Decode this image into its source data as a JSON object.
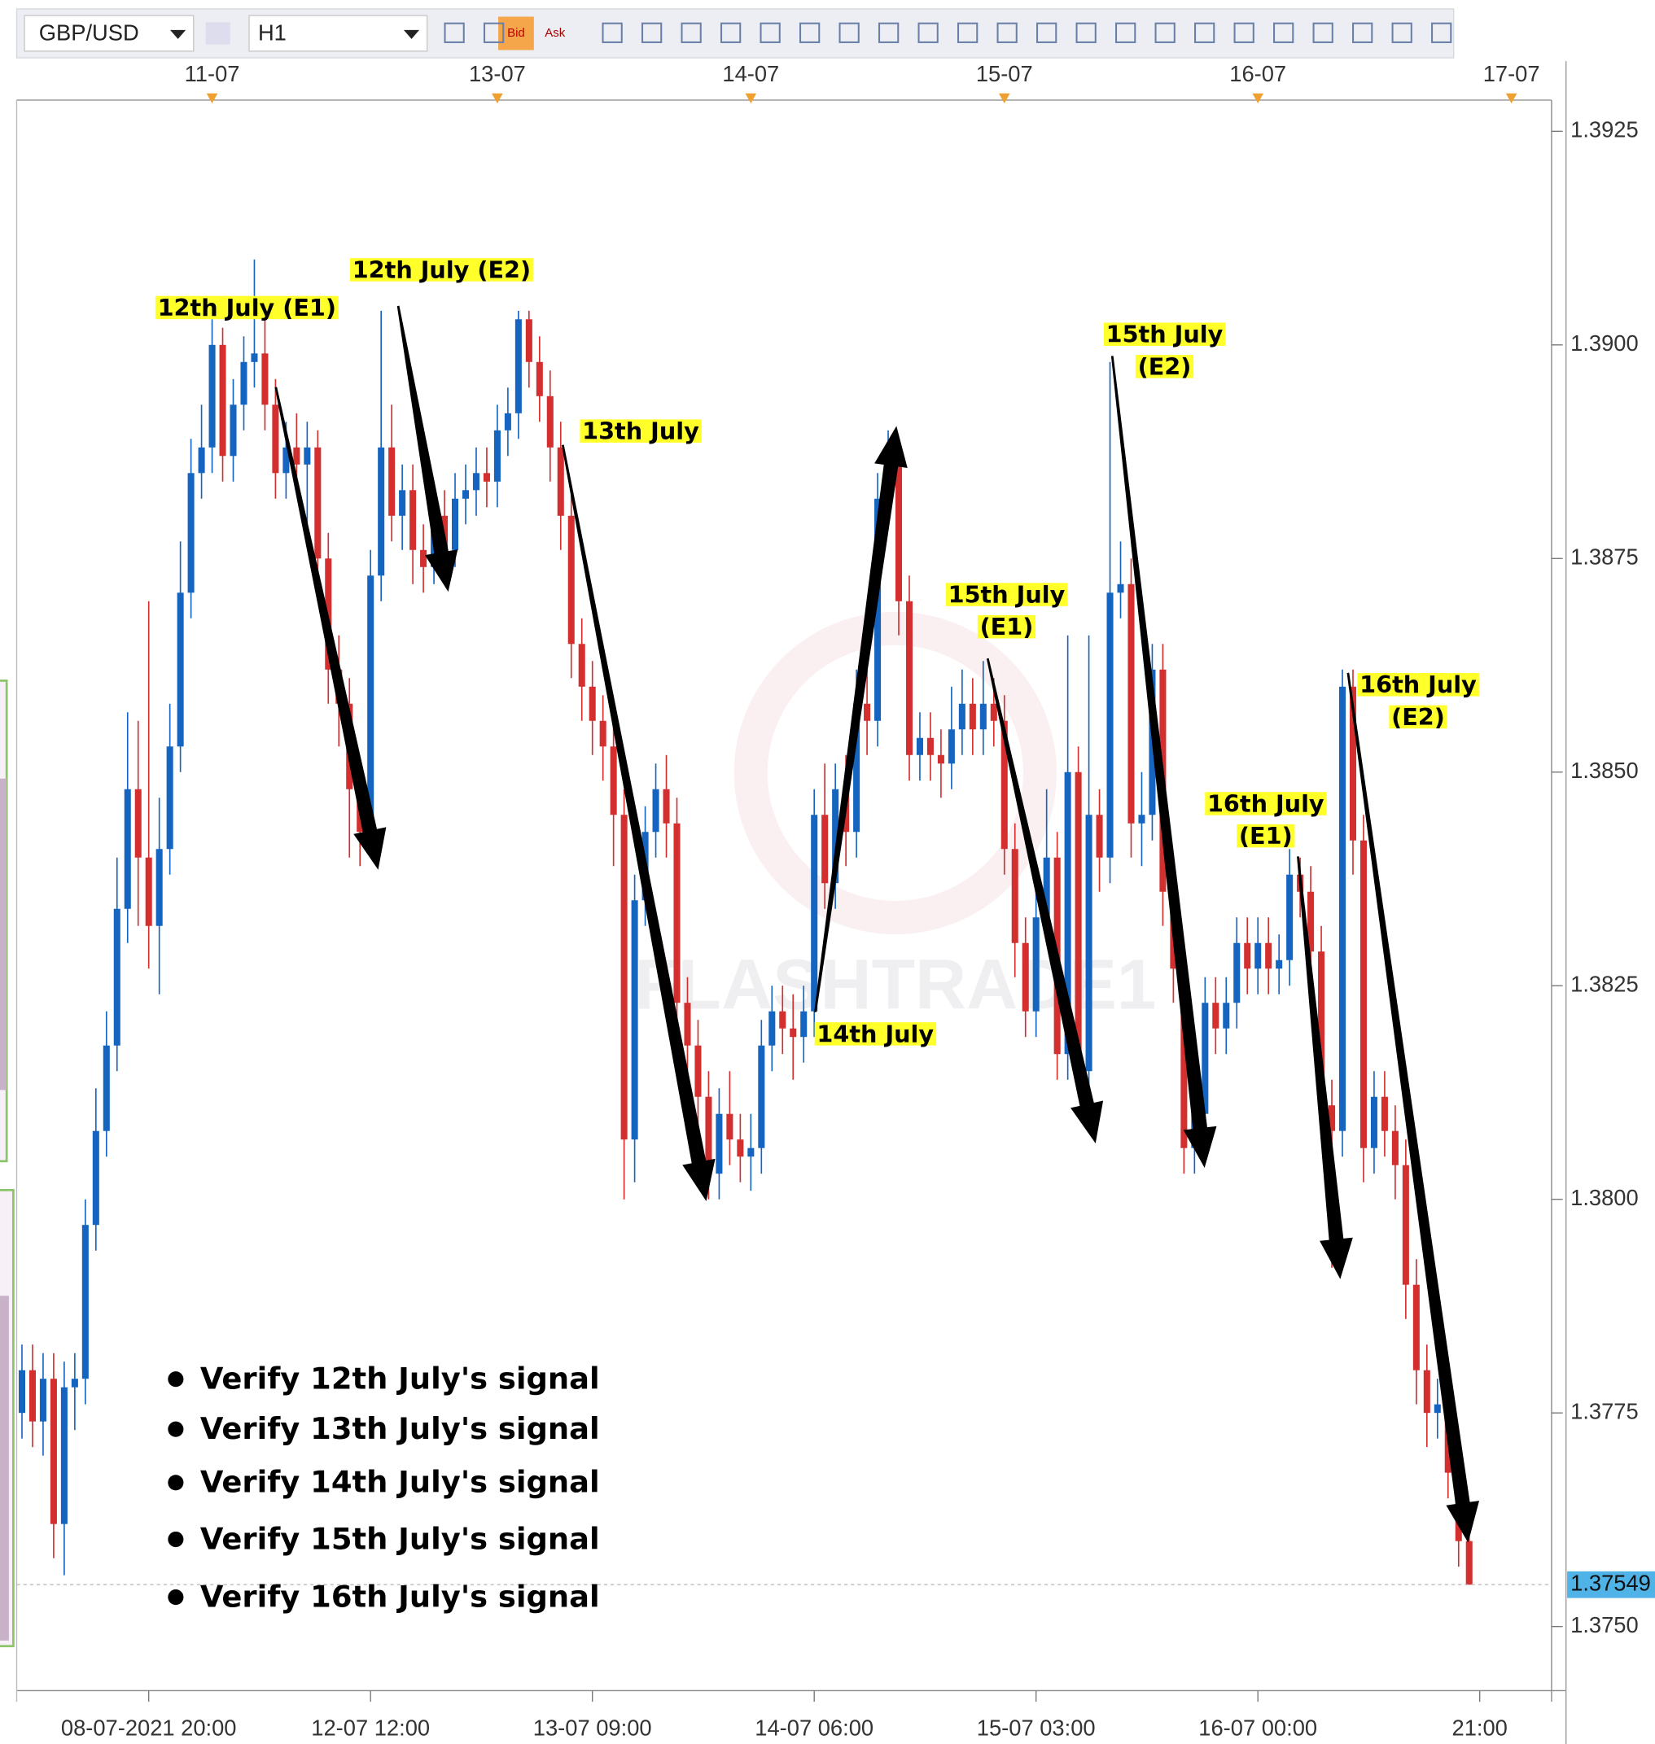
{
  "toolbar": {
    "symbol": "GBP/USD",
    "timeframe": "H1",
    "bid": "Bid",
    "ask": "Ask"
  },
  "chart_data": {
    "type": "candlestick",
    "watermark": "FLASHTRADE1",
    "bull_color": "#1565c0",
    "bear_color": "#d32f2f",
    "ylim": [
      1.37425,
      1.3928
    ],
    "yticks": [
      {
        "value": 1.375,
        "label": "1.3750"
      },
      1.3775,
      {
        "value": 1.38,
        "label": "1.3800"
      },
      1.3825,
      {
        "value": 1.385,
        "label": "1.3850"
      },
      1.3875,
      {
        "value": 1.39,
        "label": "1.3900"
      },
      1.3925
    ],
    "xlim": [
      -0.5,
      144.8
    ],
    "xticks": [
      {
        "value": 12,
        "label": "08-07-2021 20:00"
      },
      {
        "value": 33,
        "label": "12-07 12:00"
      },
      {
        "value": 54,
        "label": "13-07 09:00"
      },
      {
        "value": 75,
        "label": "14-07 06:00"
      },
      {
        "value": 96,
        "label": "15-07 03:00"
      },
      {
        "value": 117,
        "label": "16-07 00:00"
      },
      {
        "value": 138,
        "label": "21:00"
      }
    ],
    "x2ticks": [
      {
        "value": 18,
        "label": "11-07"
      },
      {
        "value": 45,
        "label": "13-07"
      },
      {
        "value": 69,
        "label": "14-07"
      },
      {
        "value": 93,
        "label": "15-07"
      },
      {
        "value": 117,
        "label": "16-07"
      },
      {
        "value": 141,
        "label": "17-07"
      }
    ],
    "open": [
      1.3775,
      1.378,
      1.3774,
      1.3779,
      1.3762,
      1.3778,
      1.3779,
      1.3797,
      1.3808,
      1.3818,
      1.3834,
      1.3848,
      1.384,
      1.3832,
      1.3841,
      1.3853,
      1.3871,
      1.3885,
      1.3888,
      1.39,
      1.3887,
      1.3893,
      1.3898,
      1.3899,
      1.3893,
      1.3885,
      1.3888,
      1.3886,
      1.3888,
      1.3875,
      1.3862,
      1.3858,
      1.3848,
      1.3843,
      1.3873,
      1.3888,
      1.388,
      1.3883,
      1.3876,
      1.3874,
      1.388,
      1.3876,
      1.3882,
      1.3883,
      1.3885,
      1.3884,
      1.389,
      1.3892,
      1.3903,
      1.3898,
      1.3894,
      1.3888,
      1.388,
      1.3865,
      1.386,
      1.3856,
      1.3853,
      1.3845,
      1.3807,
      1.3835,
      1.3843,
      1.3848,
      1.3844,
      1.3823,
      1.3818,
      1.3812,
      1.3803,
      1.381,
      1.3807,
      1.3805,
      1.3806,
      1.3818,
      1.3822,
      1.382,
      1.3819,
      1.3822,
      1.3845,
      1.3837,
      1.3848,
      1.3843,
      1.3858,
      1.3856,
      1.3882,
      1.3887,
      1.387,
      1.3852,
      1.3854,
      1.3852,
      1.3851,
      1.3855,
      1.3858,
      1.3855,
      1.3858,
      1.3856,
      1.3841,
      1.383,
      1.3822,
      1.3833,
      1.384,
      1.3817,
      1.385,
      1.3815,
      1.3845,
      1.384,
      1.3871,
      1.3872,
      1.3844,
      1.3845,
      1.3862,
      1.3836,
      1.3827,
      1.3806,
      1.381,
      1.3823,
      1.382,
      1.3823,
      1.383,
      1.3827,
      1.383,
      1.3827,
      1.3828,
      1.3838,
      1.3836,
      1.3829,
      1.3811,
      1.3808,
      1.386,
      1.3842,
      1.3806,
      1.3812,
      1.3808,
      1.3804,
      1.379,
      1.378,
      1.3775,
      1.3776,
      1.3768,
      1.376
    ],
    "high": [
      1.3783,
      1.3783,
      1.3782,
      1.3782,
      1.3781,
      1.3782,
      1.38,
      1.3813,
      1.3822,
      1.384,
      1.3857,
      1.3856,
      1.387,
      1.3847,
      1.3858,
      1.3877,
      1.3889,
      1.3893,
      1.3903,
      1.3902,
      1.3896,
      1.3901,
      1.391,
      1.3903,
      1.3896,
      1.3891,
      1.3892,
      1.3891,
      1.389,
      1.3878,
      1.3866,
      1.3861,
      1.3851,
      1.3876,
      1.3904,
      1.3893,
      1.3886,
      1.3886,
      1.3879,
      1.3884,
      1.3883,
      1.3885,
      1.3886,
      1.3888,
      1.3888,
      1.3893,
      1.3895,
      1.3904,
      1.3904,
      1.3901,
      1.3897,
      1.3891,
      1.3883,
      1.3868,
      1.3863,
      1.3859,
      1.3856,
      1.3848,
      1.3838,
      1.3846,
      1.3851,
      1.3852,
      1.3847,
      1.3826,
      1.3821,
      1.3815,
      1.3813,
      1.3815,
      1.381,
      1.381,
      1.3821,
      1.3825,
      1.3825,
      1.3824,
      1.3825,
      1.3848,
      1.3851,
      1.3851,
      1.3852,
      1.3862,
      1.3866,
      1.3885,
      1.389,
      1.3889,
      1.3873,
      1.3857,
      1.3857,
      1.3855,
      1.386,
      1.3862,
      1.3861,
      1.3863,
      1.3861,
      1.3859,
      1.3844,
      1.3833,
      1.3836,
      1.3848,
      1.3843,
      1.3866,
      1.3853,
      1.3866,
      1.3848,
      1.3898,
      1.3877,
      1.3875,
      1.385,
      1.3865,
      1.3865,
      1.3839,
      1.383,
      1.3813,
      1.3826,
      1.3826,
      1.3826,
      1.3833,
      1.3833,
      1.3833,
      1.3833,
      1.3831,
      1.3841,
      1.384,
      1.3839,
      1.3832,
      1.3814,
      1.3862,
      1.3862,
      1.3845,
      1.3815,
      1.3815,
      1.3811,
      1.3807,
      1.3793,
      1.3783,
      1.3779,
      1.3779,
      1.3771,
      1.3763
    ],
    "low": [
      1.3772,
      1.3771,
      1.377,
      1.3758,
      1.3756,
      1.3773,
      1.3776,
      1.3794,
      1.3805,
      1.3815,
      1.383,
      1.3832,
      1.3827,
      1.3824,
      1.3838,
      1.385,
      1.3868,
      1.3882,
      1.3885,
      1.3884,
      1.3884,
      1.389,
      1.3895,
      1.389,
      1.3882,
      1.3882,
      1.3883,
      1.3878,
      1.387,
      1.3858,
      1.3853,
      1.384,
      1.3839,
      1.3841,
      1.387,
      1.3877,
      1.3876,
      1.3872,
      1.3871,
      1.3872,
      1.3873,
      1.3874,
      1.3879,
      1.388,
      1.3881,
      1.3881,
      1.3887,
      1.3889,
      1.3895,
      1.3891,
      1.3884,
      1.3876,
      1.3861,
      1.3856,
      1.3852,
      1.3849,
      1.3839,
      1.38,
      1.3802,
      1.3832,
      1.384,
      1.384,
      1.3819,
      1.3814,
      1.3806,
      1.38,
      1.38,
      1.3804,
      1.3802,
      1.3801,
      1.3803,
      1.3815,
      1.3817,
      1.3814,
      1.3816,
      1.3819,
      1.3834,
      1.3834,
      1.3839,
      1.384,
      1.3852,
      1.3853,
      1.3879,
      1.3866,
      1.3849,
      1.3849,
      1.3849,
      1.3847,
      1.3848,
      1.3852,
      1.3852,
      1.3852,
      1.3853,
      1.3838,
      1.3826,
      1.3819,
      1.3819,
      1.383,
      1.3814,
      1.3814,
      1.3812,
      1.3812,
      1.3836,
      1.3837,
      1.3868,
      1.384,
      1.3839,
      1.3842,
      1.3832,
      1.3823,
      1.3803,
      1.3803,
      1.3807,
      1.3817,
      1.3817,
      1.382,
      1.3824,
      1.3824,
      1.3824,
      1.3824,
      1.3825,
      1.3833,
      1.3825,
      1.3807,
      1.3792,
      1.3805,
      1.3838,
      1.3802,
      1.3803,
      1.3805,
      1.38,
      1.3786,
      1.3776,
      1.3771,
      1.3772,
      1.3765,
      1.3757,
      1.37549
    ],
    "close": [
      1.378,
      1.3774,
      1.3779,
      1.3762,
      1.3778,
      1.3779,
      1.3797,
      1.3808,
      1.3818,
      1.3834,
      1.3848,
      1.384,
      1.3832,
      1.3841,
      1.3853,
      1.3871,
      1.3885,
      1.3888,
      1.39,
      1.3887,
      1.3893,
      1.3898,
      1.3899,
      1.3893,
      1.3885,
      1.3888,
      1.3886,
      1.3888,
      1.3875,
      1.3862,
      1.3858,
      1.3848,
      1.3843,
      1.3873,
      1.3888,
      1.388,
      1.3883,
      1.3876,
      1.3874,
      1.388,
      1.3876,
      1.3882,
      1.3883,
      1.3885,
      1.3884,
      1.389,
      1.3892,
      1.3903,
      1.3898,
      1.3894,
      1.3888,
      1.388,
      1.3865,
      1.386,
      1.3856,
      1.3853,
      1.3845,
      1.3807,
      1.3835,
      1.3843,
      1.3848,
      1.3844,
      1.3823,
      1.3818,
      1.3812,
      1.3803,
      1.381,
      1.3807,
      1.3805,
      1.3806,
      1.3818,
      1.3822,
      1.382,
      1.3819,
      1.3822,
      1.3845,
      1.3837,
      1.3848,
      1.3843,
      1.3858,
      1.3856,
      1.3882,
      1.3887,
      1.387,
      1.3852,
      1.3854,
      1.3852,
      1.3851,
      1.3855,
      1.3858,
      1.3855,
      1.3858,
      1.3856,
      1.3841,
      1.383,
      1.3822,
      1.3833,
      1.384,
      1.3817,
      1.385,
      1.3815,
      1.3845,
      1.384,
      1.3871,
      1.3872,
      1.3844,
      1.3845,
      1.3862,
      1.3836,
      1.3827,
      1.3806,
      1.381,
      1.3823,
      1.382,
      1.3823,
      1.383,
      1.3827,
      1.383,
      1.3827,
      1.3828,
      1.3838,
      1.3836,
      1.3829,
      1.3811,
      1.3808,
      1.386,
      1.3842,
      1.3806,
      1.3812,
      1.3808,
      1.3804,
      1.379,
      1.378,
      1.3775,
      1.3776,
      1.3768,
      1.376,
      1.37549
    ],
    "annotations": [
      [
        "12th July (E1)"
      ],
      [
        "12th July (E2)"
      ],
      [
        "13th July"
      ],
      [
        "14th July"
      ],
      [
        "15th July",
        "(E1)"
      ],
      [
        "15th July",
        "(E2)"
      ],
      [
        "16th July",
        "(E1)"
      ],
      [
        "16th July",
        "(E2)"
      ]
    ],
    "checklist": [
      "Verify 12th July's signal",
      "Verify 13th July's signal",
      "Verify 14th July's signal",
      "Verify 15th July's signal",
      "Verify 16th July's signal"
    ]
  }
}
